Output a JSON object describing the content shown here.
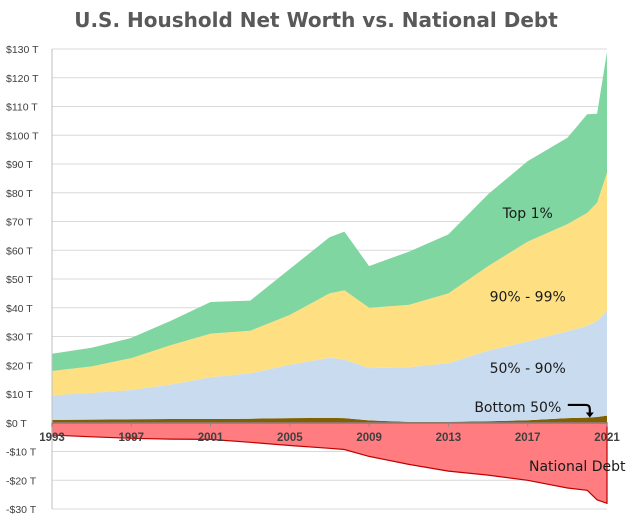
{
  "chart_data": {
    "type": "area",
    "title": "U.S. Houshold Net Worth vs. National Debt",
    "xlabel": "",
    "ylabel": "",
    "x": [
      1993,
      1995,
      1997,
      1999,
      2001,
      2003,
      2005,
      2007,
      2007.75,
      2009,
      2011,
      2013,
      2015,
      2017,
      2019,
      2020,
      2020.5,
      2021
    ],
    "series": [
      {
        "name": "Bottom 50%",
        "color": "#806000",
        "values": [
          1.0,
          1.1,
          1.2,
          1.3,
          1.3,
          1.4,
          1.6,
          1.7,
          1.6,
          0.8,
          0.3,
          0.3,
          0.5,
          0.9,
          1.6,
          1.8,
          2.0,
          2.5
        ]
      },
      {
        "name": "50% - 90%",
        "color": "#c9dcef",
        "values": [
          8.5,
          9.3,
          10.2,
          12.0,
          14.5,
          15.8,
          18.6,
          20.9,
          20.4,
          18.2,
          19.0,
          20.4,
          24.6,
          27.4,
          30.2,
          31.9,
          33.5,
          36.5
        ]
      },
      {
        "name": "90% - 99%",
        "color": "#fee083",
        "values": [
          8.5,
          9.2,
          11.1,
          13.7,
          15.2,
          14.8,
          17.3,
          22.4,
          24.1,
          21.0,
          21.7,
          24.3,
          29.4,
          34.7,
          37.3,
          39.3,
          41.0,
          48.0
        ]
      },
      {
        "name": "Top 1%",
        "color": "#7fd6a0",
        "values": [
          6.0,
          6.5,
          7.0,
          8.5,
          11.0,
          10.5,
          16.0,
          19.5,
          20.4,
          14.5,
          18.5,
          20.5,
          25.0,
          28.0,
          30.0,
          34.3,
          31.0,
          42.0
        ]
      },
      {
        "name": "National Debt",
        "color": "#ff7c80",
        "values": [
          -4.3,
          -4.9,
          -5.4,
          -5.7,
          -5.8,
          -6.8,
          -7.9,
          -8.9,
          -9.3,
          -11.7,
          -14.5,
          -16.8,
          -18.2,
          -20.0,
          -22.7,
          -23.5,
          -26.8,
          -28.0
        ]
      }
    ],
    "ylim": [
      -30,
      130
    ],
    "yticks": [
      -30,
      -20,
      -10,
      0,
      10,
      20,
      30,
      40,
      50,
      60,
      70,
      80,
      90,
      100,
      110,
      120,
      130
    ],
    "ytick_labels": [
      "-$30 T",
      "-$20 T",
      "-$10 T",
      "$0 T",
      "$10 T",
      "$20 T",
      "$30 T",
      "$40 T",
      "$50 T",
      "$60 T",
      "$70 T",
      "$80 T",
      "$90 T",
      "$100 T",
      "$110 T",
      "$120 T",
      "$130 T"
    ],
    "xticks": [
      1993,
      1997,
      2001,
      2005,
      2009,
      2013,
      2017,
      2021
    ],
    "xtick_labels": [
      "1993",
      "1997",
      "2001",
      "2005",
      "2009",
      "2013",
      "2017",
      "2021"
    ],
    "grid": "horizontal",
    "legend": "none",
    "annotations": [
      {
        "text": "Top 1%",
        "x": 2017,
        "y": 73,
        "series": "Top 1%"
      },
      {
        "text": "90% - 99%",
        "x": 2017,
        "y": 44,
        "series": "90% - 99%"
      },
      {
        "text": "50% - 90%",
        "x": 2017,
        "y": 19,
        "series": "50% - 90%"
      },
      {
        "text": "Bottom 50%",
        "x": 2016.5,
        "y": 5.5,
        "series": "Bottom 50%"
      },
      {
        "text": "National Debt",
        "x": 2019.5,
        "y": -15,
        "series": "National Debt"
      }
    ]
  }
}
